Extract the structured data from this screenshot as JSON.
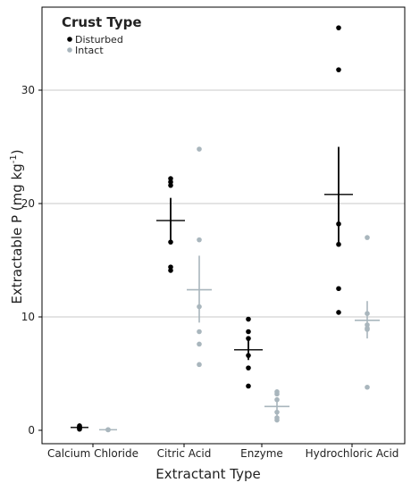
{
  "chart_data": {
    "type": "scatter",
    "title": "",
    "xlabel": "Extractant Type",
    "ylabel_main": "Extractable P (mg kg",
    "ylabel_sup": "-1",
    "ylabel_end": ")",
    "ylim": [
      -1,
      37
    ],
    "yticks": [
      "0",
      "10",
      "20",
      "30"
    ],
    "grid": "horizontal",
    "categories": [
      "Calcium Chloride",
      "Citric Acid",
      "Enzyme",
      "Hydrochloric Acid"
    ],
    "legend": {
      "title": "Crust Type",
      "placement": "top-left"
    },
    "series": [
      {
        "name": "Disturbed",
        "color": "#000000",
        "points": [
          [
            0.3,
            0.4,
            0.2,
            0.1,
            0.3,
            0.2
          ],
          [
            22.2,
            21.9,
            21.6,
            16.6,
            14.4,
            14.1
          ],
          [
            9.8,
            8.7,
            8.1,
            6.6,
            5.5,
            3.9
          ],
          [
            35.5,
            31.8,
            18.2,
            16.4,
            12.5,
            10.4
          ]
        ],
        "mean": [
          0.25,
          18.5,
          7.1,
          20.8
        ],
        "ci": [
          [
            0.1,
            0.4
          ],
          [
            16.5,
            20.5
          ],
          [
            6.2,
            8.1
          ],
          [
            16.6,
            25.0
          ]
        ]
      },
      {
        "name": "Intact",
        "color": "#a9b6bd",
        "points": [
          [
            0.05,
            0.05,
            0.05
          ],
          [
            24.8,
            16.8,
            10.9,
            8.7,
            7.6,
            5.8
          ],
          [
            3.4,
            3.2,
            2.7,
            1.6,
            1.1,
            0.9
          ],
          [
            17.0,
            10.3,
            9.3,
            9.0,
            8.9,
            3.8
          ]
        ],
        "mean": [
          0.05,
          12.4,
          2.1,
          9.7
        ],
        "ci": [
          [
            0.0,
            0.1
          ],
          [
            9.5,
            15.4
          ],
          [
            1.3,
            2.9
          ],
          [
            8.1,
            11.4
          ]
        ]
      }
    ]
  }
}
